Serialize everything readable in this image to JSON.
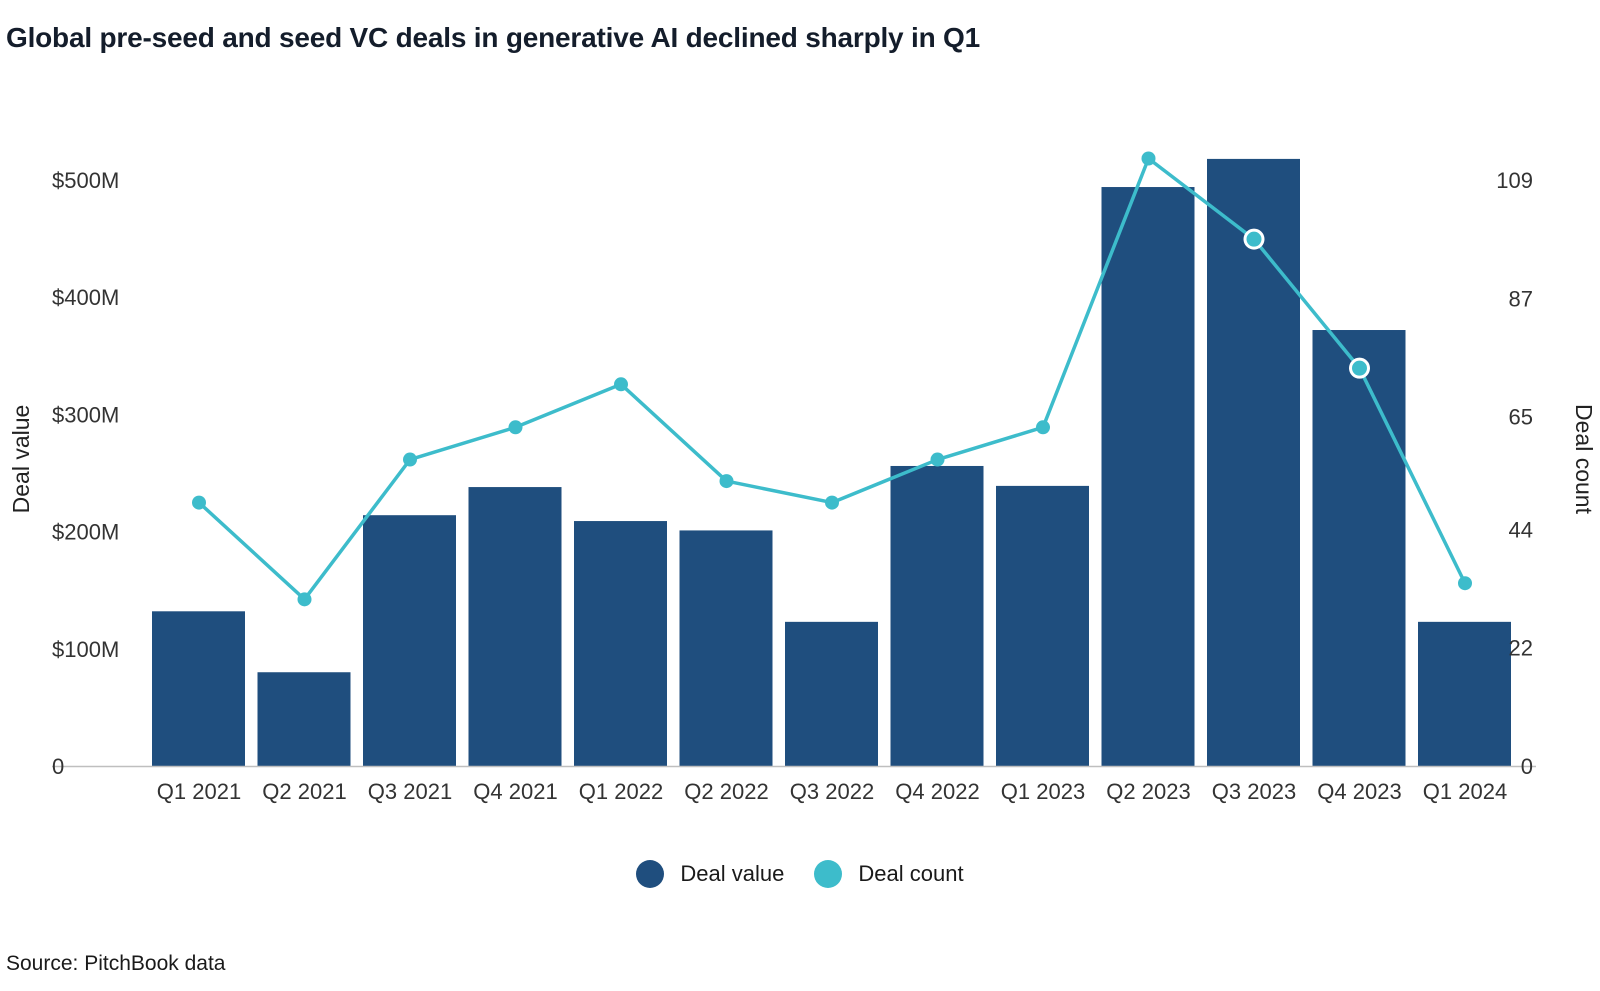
{
  "chart_data": {
    "type": "bar",
    "title": "Global pre-seed and seed VC deals in generative AI declined sharply in Q1",
    "categories": [
      "Q1 2021",
      "Q2 2021",
      "Q3 2021",
      "Q4 2021",
      "Q1 2022",
      "Q2 2022",
      "Q3 2022",
      "Q4 2022",
      "Q1 2023",
      "Q2 2023",
      "Q3 2023",
      "Q4 2023",
      "Q1 2024"
    ],
    "series": [
      {
        "name": "Deal value",
        "type": "bar",
        "axis": "left",
        "color": "#1f4e7e",
        "values": [
          132,
          80,
          214,
          238,
          209,
          201,
          123,
          256,
          239,
          494,
          518,
          372,
          123
        ]
      },
      {
        "name": "Deal count",
        "type": "line",
        "axis": "right",
        "color": "#3dbccb",
        "values": [
          49,
          31,
          57,
          63,
          71,
          53,
          49,
          57,
          63,
          113,
          98,
          74,
          34
        ],
        "highlighted": [
          false,
          false,
          false,
          false,
          false,
          false,
          false,
          false,
          false,
          false,
          true,
          true,
          false
        ]
      }
    ],
    "left_axis": {
      "label": "Deal value",
      "min": 0,
      "max": 512,
      "ticks": [
        {
          "value": 0,
          "label": "0"
        },
        {
          "value": 100,
          "label": "$100M"
        },
        {
          "value": 200,
          "label": "$200M"
        },
        {
          "value": 300,
          "label": "$300M"
        },
        {
          "value": 400,
          "label": "$400M"
        },
        {
          "value": 500,
          "label": "$500M"
        }
      ]
    },
    "right_axis": {
      "label": "Deal count",
      "min": 0,
      "max": 109,
      "ticks": [
        {
          "value": 0,
          "label": "0"
        },
        {
          "value": 22,
          "label": "22"
        },
        {
          "value": 44,
          "label": "44"
        },
        {
          "value": 65,
          "label": "65"
        },
        {
          "value": 87,
          "label": "87"
        },
        {
          "value": 109,
          "label": "109"
        }
      ]
    },
    "legend": [
      {
        "label": "Deal value",
        "color": "#1f4e7e"
      },
      {
        "label": "Deal count",
        "color": "#3dbccb"
      }
    ],
    "source": "Source: PitchBook data"
  }
}
